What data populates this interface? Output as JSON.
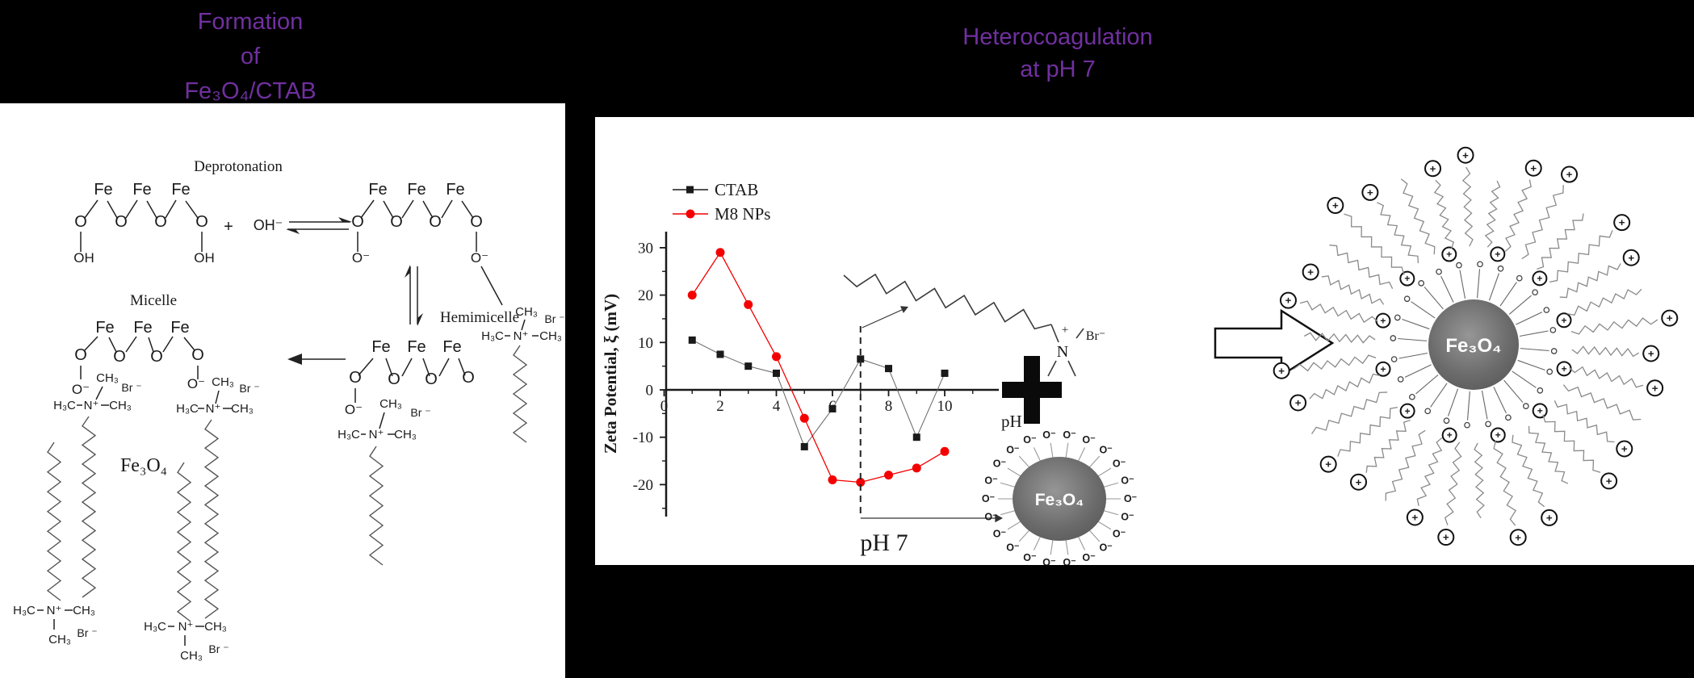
{
  "colors": {
    "background": "#000000",
    "panel": "#ffffff",
    "title_text": "#7030A0",
    "ctab_black": "#1a1a1a",
    "m8_red": "#f40000",
    "chain_gray": "#8a8a8a",
    "bond_dark": "#222222",
    "core_gray": "#6b6b6b"
  },
  "left_title": {
    "lines": [
      "Formation",
      "of",
      "Fe₃O₄/CTAB"
    ]
  },
  "right_title": {
    "lines": [
      "Heterocoagulation",
      "at pH 7"
    ]
  },
  "scheme": {
    "deprotonation_label": "Deprotonation",
    "micelle_label": "Micelle",
    "hemimicelle_label": "Hemimicelle",
    "fe3o4_label": "Fe₃O₄",
    "plus": "+",
    "hydroxide": "OH⁻",
    "atoms": {
      "fe": "Fe",
      "o": "O",
      "oh": "OH",
      "o_minus": "O⁻",
      "ch3": "CH₃",
      "h3c": "H₃C",
      "n_plus": "N⁺",
      "br_minus": "Br ⁻"
    }
  },
  "chart_data": {
    "type": "line",
    "title": "",
    "xlabel": "pH",
    "ylabel": "Zeta Potential, ξ (mV)",
    "x_ticks": [
      0,
      2,
      4,
      6,
      8,
      10
    ],
    "y_ticks": [
      -20,
      -10,
      0,
      10,
      20,
      30
    ],
    "xlim": [
      0,
      11.9
    ],
    "ylim": [
      -26.5,
      33.5
    ],
    "grid": false,
    "legend_position": "top-left",
    "x": [
      1,
      2,
      3,
      4,
      5,
      6,
      7,
      8,
      9,
      10
    ],
    "series": [
      {
        "name": "CTAB",
        "color": "#1a1a1a",
        "marker": "square",
        "values": [
          10.5,
          7.5,
          5,
          3.5,
          -12,
          -4,
          6.5,
          4.5,
          -10,
          3.5
        ]
      },
      {
        "name": "M8 NPs",
        "color": "#f40000",
        "marker": "circle",
        "values": [
          20,
          29,
          18,
          7,
          -6,
          -19,
          -19.5,
          -18,
          -16.5,
          -13
        ]
      }
    ],
    "annotation": {
      "label": "pH 7",
      "x": 7
    }
  },
  "hetero": {
    "plus_sign": "+",
    "core_label": "Fe₃O₄",
    "o_minus": "O⁻",
    "n_label": "N",
    "n_charge": "+",
    "br_minus": "Br⁻",
    "head_charge": "+"
  }
}
